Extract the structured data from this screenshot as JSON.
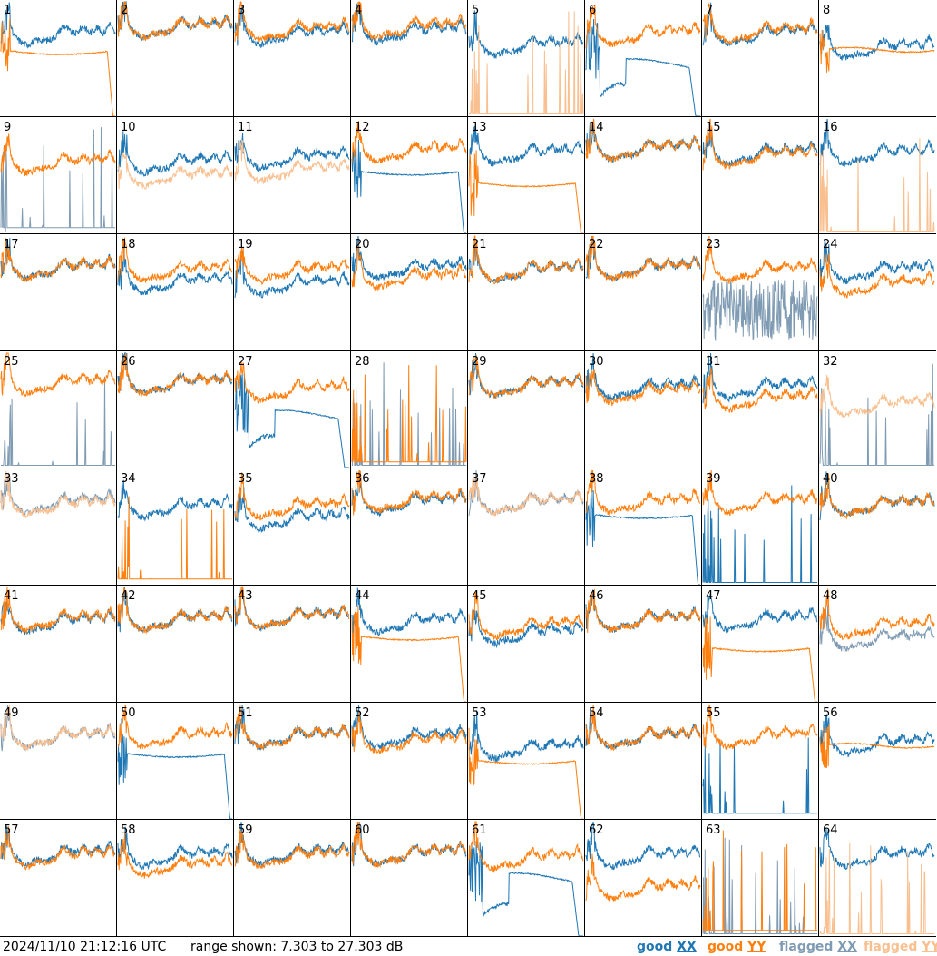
{
  "footer": {
    "timestamp": "2024/11/10 21:12:16 UTC",
    "range_text": "range shown: 7.303 to 27.303 dB"
  },
  "legend": [
    {
      "label": "good",
      "pol": "XX",
      "color": "#1f77b4"
    },
    {
      "label": "good",
      "pol": "YY",
      "color": "#ff7f0e"
    },
    {
      "label": "flagged",
      "pol": "XX",
      "color": "#7f9bb3"
    },
    {
      "label": "flagged",
      "pol": "YY",
      "color": "#f9bf8f"
    }
  ],
  "colors": {
    "good_xx": "#1f77b4",
    "good_yy": "#ff7f0e",
    "flagged_xx": "#7f9bb3",
    "flagged_yy": "#f9bf8f",
    "grid_lines": "#000000"
  },
  "chart_data": {
    "type": "line",
    "layout": "8x8 small-multiples grid of per-antenna spectra",
    "grid": true,
    "y_range_db": [
      7.303,
      27.303
    ],
    "series_names": [
      "good XX",
      "good YY",
      "flagged XX",
      "flagged YY"
    ],
    "panels": [
      {
        "label": "1",
        "xx": {
          "status": "good",
          "shape": "normal",
          "level": 0.72
        },
        "yy": {
          "status": "good",
          "shape": "plateau_dropoff",
          "level": 0.58
        }
      },
      {
        "label": "2",
        "xx": {
          "status": "good",
          "shape": "normal",
          "level": 0.78
        },
        "yy": {
          "status": "good",
          "shape": "normal",
          "level": 0.78
        }
      },
      {
        "label": "3",
        "xx": {
          "status": "good",
          "shape": "normal",
          "level": 0.72
        },
        "yy": {
          "status": "good",
          "shape": "normal",
          "level": 0.76
        }
      },
      {
        "label": "4",
        "xx": {
          "status": "good",
          "shape": "normal",
          "level": 0.74
        },
        "yy": {
          "status": "good",
          "shape": "normal",
          "level": 0.78
        }
      },
      {
        "label": "5",
        "xx": {
          "status": "good",
          "shape": "normal",
          "level": 0.62
        },
        "yy": {
          "status": "flagged",
          "shape": "spikes",
          "level": 0.02
        }
      },
      {
        "label": "6",
        "xx": {
          "status": "good",
          "shape": "dip_plateau",
          "level": 0.45
        },
        "yy": {
          "status": "good",
          "shape": "normal",
          "level": 0.72
        }
      },
      {
        "label": "7",
        "xx": {
          "status": "good",
          "shape": "normal",
          "level": 0.72
        },
        "yy": {
          "status": "good",
          "shape": "normal",
          "level": 0.74
        }
      },
      {
        "label": "8",
        "xx": {
          "status": "good",
          "shape": "normal",
          "level": 0.6
        },
        "yy": {
          "status": "good",
          "shape": "plateau",
          "level": 0.58
        }
      },
      {
        "label": "9",
        "xx": {
          "status": "flagged",
          "shape": "spikes",
          "level": 0.05
        },
        "yy": {
          "status": "good",
          "shape": "normal",
          "level": 0.62
        }
      },
      {
        "label": "10",
        "xx": {
          "status": "good",
          "shape": "normal",
          "level": 0.62
        },
        "yy": {
          "status": "flagged",
          "shape": "normal",
          "level": 0.5
        }
      },
      {
        "label": "11",
        "xx": {
          "status": "good",
          "shape": "normal",
          "level": 0.66
        },
        "yy": {
          "status": "flagged",
          "shape": "normal",
          "level": 0.55
        }
      },
      {
        "label": "12",
        "xx": {
          "status": "good",
          "shape": "plateau_dropoff",
          "level": 0.55
        },
        "yy": {
          "status": "good",
          "shape": "normal",
          "level": 0.72
        }
      },
      {
        "label": "13",
        "xx": {
          "status": "good",
          "shape": "normal",
          "level": 0.7
        },
        "yy": {
          "status": "good",
          "shape": "plateau_dropoff",
          "level": 0.45
        }
      },
      {
        "label": "14",
        "xx": {
          "status": "good",
          "shape": "normal",
          "level": 0.74
        },
        "yy": {
          "status": "good",
          "shape": "normal",
          "level": 0.74
        }
      },
      {
        "label": "15",
        "xx": {
          "status": "good",
          "shape": "normal",
          "level": 0.7
        },
        "yy": {
          "status": "good",
          "shape": "normal",
          "level": 0.68
        }
      },
      {
        "label": "16",
        "xx": {
          "status": "good",
          "shape": "normal",
          "level": 0.7
        },
        "yy": {
          "status": "flagged",
          "shape": "spikes",
          "level": 0.02
        }
      },
      {
        "label": "17",
        "xx": {
          "status": "good",
          "shape": "normal",
          "level": 0.72
        },
        "yy": {
          "status": "good",
          "shape": "normal",
          "level": 0.72
        }
      },
      {
        "label": "18",
        "xx": {
          "status": "good",
          "shape": "normal",
          "level": 0.6
        },
        "yy": {
          "status": "good",
          "shape": "normal",
          "level": 0.7
        }
      },
      {
        "label": "19",
        "xx": {
          "status": "good",
          "shape": "normal",
          "level": 0.58
        },
        "yy": {
          "status": "good",
          "shape": "normal",
          "level": 0.7
        }
      },
      {
        "label": "20",
        "xx": {
          "status": "good",
          "shape": "normal",
          "level": 0.72
        },
        "yy": {
          "status": "good",
          "shape": "normal",
          "level": 0.64
        }
      },
      {
        "label": "21",
        "xx": {
          "status": "good",
          "shape": "normal",
          "level": 0.7
        },
        "yy": {
          "status": "good",
          "shape": "normal",
          "level": 0.7
        }
      },
      {
        "label": "22",
        "xx": {
          "status": "good",
          "shape": "normal",
          "level": 0.72
        },
        "yy": {
          "status": "good",
          "shape": "normal",
          "level": 0.72
        }
      },
      {
        "label": "23",
        "xx": {
          "status": "flagged",
          "shape": "noise",
          "level": 0.35
        },
        "yy": {
          "status": "good",
          "shape": "normal",
          "level": 0.7
        }
      },
      {
        "label": "24",
        "xx": {
          "status": "good",
          "shape": "normal",
          "level": 0.7
        },
        "yy": {
          "status": "good",
          "shape": "normal",
          "level": 0.58
        }
      },
      {
        "label": "25",
        "xx": {
          "status": "flagged",
          "shape": "spikes",
          "level": 0.02
        },
        "yy": {
          "status": "good",
          "shape": "normal",
          "level": 0.74
        }
      },
      {
        "label": "26",
        "xx": {
          "status": "good",
          "shape": "normal",
          "level": 0.74
        },
        "yy": {
          "status": "good",
          "shape": "normal",
          "level": 0.74
        }
      },
      {
        "label": "27",
        "xx": {
          "status": "good",
          "shape": "dip_plateau",
          "level": 0.45
        },
        "yy": {
          "status": "good",
          "shape": "normal",
          "level": 0.68
        }
      },
      {
        "label": "28",
        "xx": {
          "status": "flagged",
          "shape": "spikes",
          "level": 0.02
        },
        "yy": {
          "status": "good",
          "shape": "spikes",
          "level": 0.05
        }
      },
      {
        "label": "29",
        "xx": {
          "status": "good",
          "shape": "normal",
          "level": 0.72
        },
        "yy": {
          "status": "good",
          "shape": "normal",
          "level": 0.72
        }
      },
      {
        "label": "30",
        "xx": {
          "status": "good",
          "shape": "normal",
          "level": 0.7
        },
        "yy": {
          "status": "good",
          "shape": "normal",
          "level": 0.66
        }
      },
      {
        "label": "31",
        "xx": {
          "status": "good",
          "shape": "normal",
          "level": 0.7
        },
        "yy": {
          "status": "good",
          "shape": "normal",
          "level": 0.6
        }
      },
      {
        "label": "32",
        "xx": {
          "status": "flagged",
          "shape": "spikes",
          "level": 0.02
        },
        "yy": {
          "status": "flagged",
          "shape": "normal",
          "level": 0.55
        }
      },
      {
        "label": "33",
        "xx": {
          "status": "flagged",
          "shape": "normal",
          "level": 0.72
        },
        "yy": {
          "status": "flagged",
          "shape": "normal",
          "level": 0.7
        }
      },
      {
        "label": "34",
        "xx": {
          "status": "good",
          "shape": "normal",
          "level": 0.68
        },
        "yy": {
          "status": "good",
          "shape": "spikes",
          "level": 0.05
        }
      },
      {
        "label": "35",
        "xx": {
          "status": "good",
          "shape": "normal",
          "level": 0.58
        },
        "yy": {
          "status": "good",
          "shape": "normal",
          "level": 0.68
        }
      },
      {
        "label": "36",
        "xx": {
          "status": "good",
          "shape": "normal",
          "level": 0.72
        },
        "yy": {
          "status": "good",
          "shape": "normal",
          "level": 0.74
        }
      },
      {
        "label": "37",
        "xx": {
          "status": "flagged",
          "shape": "normal",
          "level": 0.72
        },
        "yy": {
          "status": "flagged",
          "shape": "normal",
          "level": 0.72
        }
      },
      {
        "label": "38",
        "xx": {
          "status": "good",
          "shape": "plateau_dropoff",
          "level": 0.62
        },
        "yy": {
          "status": "good",
          "shape": "normal",
          "level": 0.72
        }
      },
      {
        "label": "39",
        "xx": {
          "status": "good",
          "shape": "spikes",
          "level": 0.02
        },
        "yy": {
          "status": "good",
          "shape": "normal",
          "level": 0.72
        }
      },
      {
        "label": "40",
        "xx": {
          "status": "good",
          "shape": "normal",
          "level": 0.7
        },
        "yy": {
          "status": "good",
          "shape": "normal",
          "level": 0.7
        }
      },
      {
        "label": "41",
        "xx": {
          "status": "good",
          "shape": "normal",
          "level": 0.7
        },
        "yy": {
          "status": "good",
          "shape": "normal",
          "level": 0.72
        }
      },
      {
        "label": "42",
        "xx": {
          "status": "good",
          "shape": "normal",
          "level": 0.72
        },
        "yy": {
          "status": "good",
          "shape": "normal",
          "level": 0.72
        }
      },
      {
        "label": "43",
        "xx": {
          "status": "good",
          "shape": "normal",
          "level": 0.74
        },
        "yy": {
          "status": "good",
          "shape": "normal",
          "level": 0.74
        }
      },
      {
        "label": "44",
        "xx": {
          "status": "good",
          "shape": "normal",
          "level": 0.7
        },
        "yy": {
          "status": "good",
          "shape": "plateau_dropoff",
          "level": 0.58
        }
      },
      {
        "label": "45",
        "xx": {
          "status": "good",
          "shape": "normal",
          "level": 0.6
        },
        "yy": {
          "status": "good",
          "shape": "normal",
          "level": 0.66
        }
      },
      {
        "label": "46",
        "xx": {
          "status": "good",
          "shape": "normal",
          "level": 0.72
        },
        "yy": {
          "status": "good",
          "shape": "normal",
          "level": 0.72
        }
      },
      {
        "label": "47",
        "xx": {
          "status": "good",
          "shape": "normal",
          "level": 0.72
        },
        "yy": {
          "status": "good",
          "shape": "plateau_dropoff",
          "level": 0.48
        }
      },
      {
        "label": "48",
        "xx": {
          "status": "flagged",
          "shape": "normal",
          "level": 0.55
        },
        "yy": {
          "status": "good",
          "shape": "normal",
          "level": 0.66
        }
      },
      {
        "label": "49",
        "xx": {
          "status": "flagged",
          "shape": "normal",
          "level": 0.72
        },
        "yy": {
          "status": "flagged",
          "shape": "normal",
          "level": 0.72
        }
      },
      {
        "label": "50",
        "xx": {
          "status": "good",
          "shape": "plateau_dropoff",
          "level": 0.58
        },
        "yy": {
          "status": "good",
          "shape": "normal",
          "level": 0.72
        }
      },
      {
        "label": "51",
        "xx": {
          "status": "good",
          "shape": "normal",
          "level": 0.72
        },
        "yy": {
          "status": "good",
          "shape": "normal",
          "level": 0.72
        }
      },
      {
        "label": "52",
        "xx": {
          "status": "good",
          "shape": "normal",
          "level": 0.72
        },
        "yy": {
          "status": "good",
          "shape": "normal",
          "level": 0.68
        }
      },
      {
        "label": "53",
        "xx": {
          "status": "good",
          "shape": "normal",
          "level": 0.62
        },
        "yy": {
          "status": "good",
          "shape": "plateau_dropoff",
          "level": 0.52
        }
      },
      {
        "label": "54",
        "xx": {
          "status": "good",
          "shape": "normal",
          "level": 0.72
        },
        "yy": {
          "status": "good",
          "shape": "normal",
          "level": 0.72
        }
      },
      {
        "label": "55",
        "xx": {
          "status": "good",
          "shape": "spikes",
          "level": 0.05
        },
        "yy": {
          "status": "good",
          "shape": "normal",
          "level": 0.72
        }
      },
      {
        "label": "56",
        "xx": {
          "status": "good",
          "shape": "normal",
          "level": 0.66
        },
        "yy": {
          "status": "good",
          "shape": "plateau",
          "level": 0.64
        }
      },
      {
        "label": "57",
        "xx": {
          "status": "good",
          "shape": "normal",
          "level": 0.72
        },
        "yy": {
          "status": "good",
          "shape": "normal",
          "level": 0.7
        }
      },
      {
        "label": "58",
        "xx": {
          "status": "good",
          "shape": "normal",
          "level": 0.7
        },
        "yy": {
          "status": "good",
          "shape": "normal",
          "level": 0.62
        }
      },
      {
        "label": "59",
        "xx": {
          "status": "good",
          "shape": "normal",
          "level": 0.72
        },
        "yy": {
          "status": "good",
          "shape": "normal",
          "level": 0.7
        }
      },
      {
        "label": "60",
        "xx": {
          "status": "good",
          "shape": "normal",
          "level": 0.72
        },
        "yy": {
          "status": "good",
          "shape": "normal",
          "level": 0.72
        }
      },
      {
        "label": "61",
        "xx": {
          "status": "good",
          "shape": "dip_plateau",
          "level": 0.5
        },
        "yy": {
          "status": "good",
          "shape": "normal",
          "level": 0.68
        }
      },
      {
        "label": "62",
        "xx": {
          "status": "good",
          "shape": "normal",
          "level": 0.7
        },
        "yy": {
          "status": "good",
          "shape": "normal",
          "level": 0.42
        }
      },
      {
        "label": "63",
        "xx": {
          "status": "flagged",
          "shape": "spikes",
          "level": 0.02
        },
        "yy": {
          "status": "good",
          "shape": "spikes",
          "level": 0.05
        }
      },
      {
        "label": "64",
        "xx": {
          "status": "good",
          "shape": "normal",
          "level": 0.7
        },
        "yy": {
          "status": "flagged",
          "shape": "spikes",
          "level": 0.02
        }
      }
    ]
  }
}
